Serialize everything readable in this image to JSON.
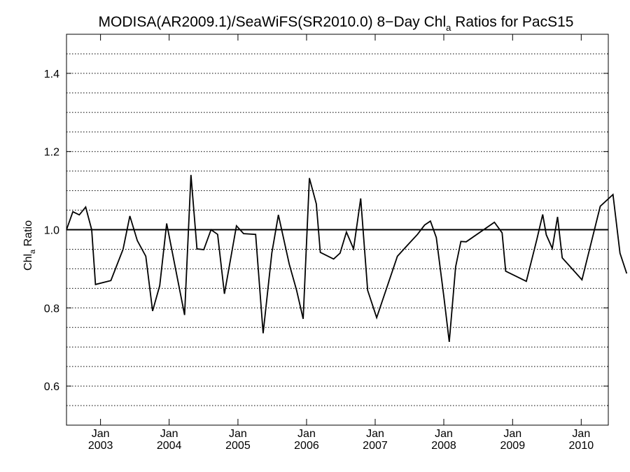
{
  "chart_data": {
    "type": "line",
    "title": {
      "prefix": "MODISA(AR2009.1)/SeaWiFS(SR2010.0) 8−Day Chl",
      "subscript": "a",
      "suffix": " Ratios for PacS15"
    },
    "ylabel": {
      "prefix": "Chl",
      "subscript": "a",
      "suffix": " Ratio"
    },
    "xlim": [
      "2002-07-04",
      "2010-05-25"
    ],
    "ylim": [
      0.5,
      1.5
    ],
    "y_ticks": [
      {
        "value": 0.6,
        "label": "0.6"
      },
      {
        "value": 0.8,
        "label": "0.8"
      },
      {
        "value": 1.0,
        "label": "1.0"
      },
      {
        "value": 1.2,
        "label": "1.2"
      },
      {
        "value": 1.4,
        "label": "1.4"
      }
    ],
    "y_gridlines": [
      0.55,
      0.6,
      0.65,
      0.7,
      0.75,
      0.8,
      0.85,
      0.9,
      0.95,
      1.05,
      1.1,
      1.15,
      1.2,
      1.25,
      1.3,
      1.35,
      1.4,
      1.45
    ],
    "grid": "dotted horizontal",
    "reference_line": 1.0,
    "x_ticks": [
      {
        "date": "2003-01-01",
        "month": "Jan",
        "year": "2003"
      },
      {
        "date": "2004-01-01",
        "month": "Jan",
        "year": "2004"
      },
      {
        "date": "2005-01-01",
        "month": "Jan",
        "year": "2005"
      },
      {
        "date": "2006-01-01",
        "month": "Jan",
        "year": "2006"
      },
      {
        "date": "2007-01-01",
        "month": "Jan",
        "year": "2007"
      },
      {
        "date": "2008-01-01",
        "month": "Jan",
        "year": "2008"
      },
      {
        "date": "2009-01-01",
        "month": "Jan",
        "year": "2009"
      },
      {
        "date": "2010-01-01",
        "month": "Jan",
        "year": "2010"
      }
    ],
    "series": [
      {
        "color": "#000000",
        "points": [
          [
            "2002-07-04",
            1.0
          ],
          [
            "2002-08-07",
            1.046
          ],
          [
            "2002-09-10",
            1.038
          ],
          [
            "2002-10-14",
            1.058
          ],
          [
            "2002-11-15",
            1.0
          ],
          [
            "2002-12-05",
            0.86
          ],
          [
            "2003-02-25",
            0.87
          ],
          [
            "2003-05-01",
            0.95
          ],
          [
            "2003-06-06",
            1.035
          ],
          [
            "2003-07-16",
            0.972
          ],
          [
            "2003-08-30",
            0.932
          ],
          [
            "2003-10-05",
            0.792
          ],
          [
            "2003-11-12",
            0.857
          ],
          [
            "2003-12-19",
            1.016
          ],
          [
            "2004-03-23",
            0.782
          ],
          [
            "2004-04-26",
            1.14
          ],
          [
            "2004-05-28",
            0.951
          ],
          [
            "2004-07-03",
            0.949
          ],
          [
            "2004-08-11",
            1.0
          ],
          [
            "2004-09-15",
            0.988
          ],
          [
            "2004-10-21",
            0.836
          ],
          [
            "2004-12-24",
            1.01
          ],
          [
            "2005-01-31",
            0.99
          ],
          [
            "2005-04-05",
            0.988
          ],
          [
            "2005-05-15",
            0.735
          ],
          [
            "2005-06-30",
            0.94
          ],
          [
            "2005-08-04",
            1.038
          ],
          [
            "2005-10-01",
            0.912
          ],
          [
            "2005-11-09",
            0.845
          ],
          [
            "2005-12-14",
            0.772
          ],
          [
            "2006-01-16",
            1.132
          ],
          [
            "2006-02-22",
            1.066
          ],
          [
            "2006-03-15",
            0.942
          ],
          [
            "2006-05-25",
            0.925
          ],
          [
            "2006-06-28",
            0.94
          ],
          [
            "2006-08-01",
            0.994
          ],
          [
            "2006-09-08",
            0.951
          ],
          [
            "2006-10-16",
            1.08
          ],
          [
            "2006-11-22",
            0.845
          ],
          [
            "2007-01-09",
            0.775
          ],
          [
            "2007-04-29",
            0.932
          ],
          [
            "2007-06-21",
            0.96
          ],
          [
            "2007-08-14",
            0.988
          ],
          [
            "2007-09-21",
            1.012
          ],
          [
            "2007-10-22",
            1.022
          ],
          [
            "2007-11-22",
            0.98
          ],
          [
            "2008-01-01",
            0.83
          ],
          [
            "2008-01-30",
            0.713
          ],
          [
            "2008-03-04",
            0.905
          ],
          [
            "2008-04-01",
            0.97
          ],
          [
            "2008-04-29",
            0.969
          ],
          [
            "2008-09-26",
            1.019
          ],
          [
            "2008-11-06",
            0.992
          ],
          [
            "2008-11-25",
            0.894
          ],
          [
            "2009-03-15",
            0.868
          ],
          [
            "2009-05-10",
            0.975
          ],
          [
            "2009-06-10",
            1.039
          ],
          [
            "2009-06-29",
            0.987
          ],
          [
            "2009-07-31",
            0.952
          ],
          [
            "2009-08-28",
            1.033
          ],
          [
            "2009-09-22",
            0.928
          ],
          [
            "2010-01-05",
            0.872
          ],
          [
            "2010-04-12",
            1.06
          ],
          [
            "2010-06-19",
            1.09
          ],
          [
            "2010-07-26",
            0.94
          ],
          [
            "2010-08-31",
            0.888
          ]
        ]
      }
    ]
  }
}
